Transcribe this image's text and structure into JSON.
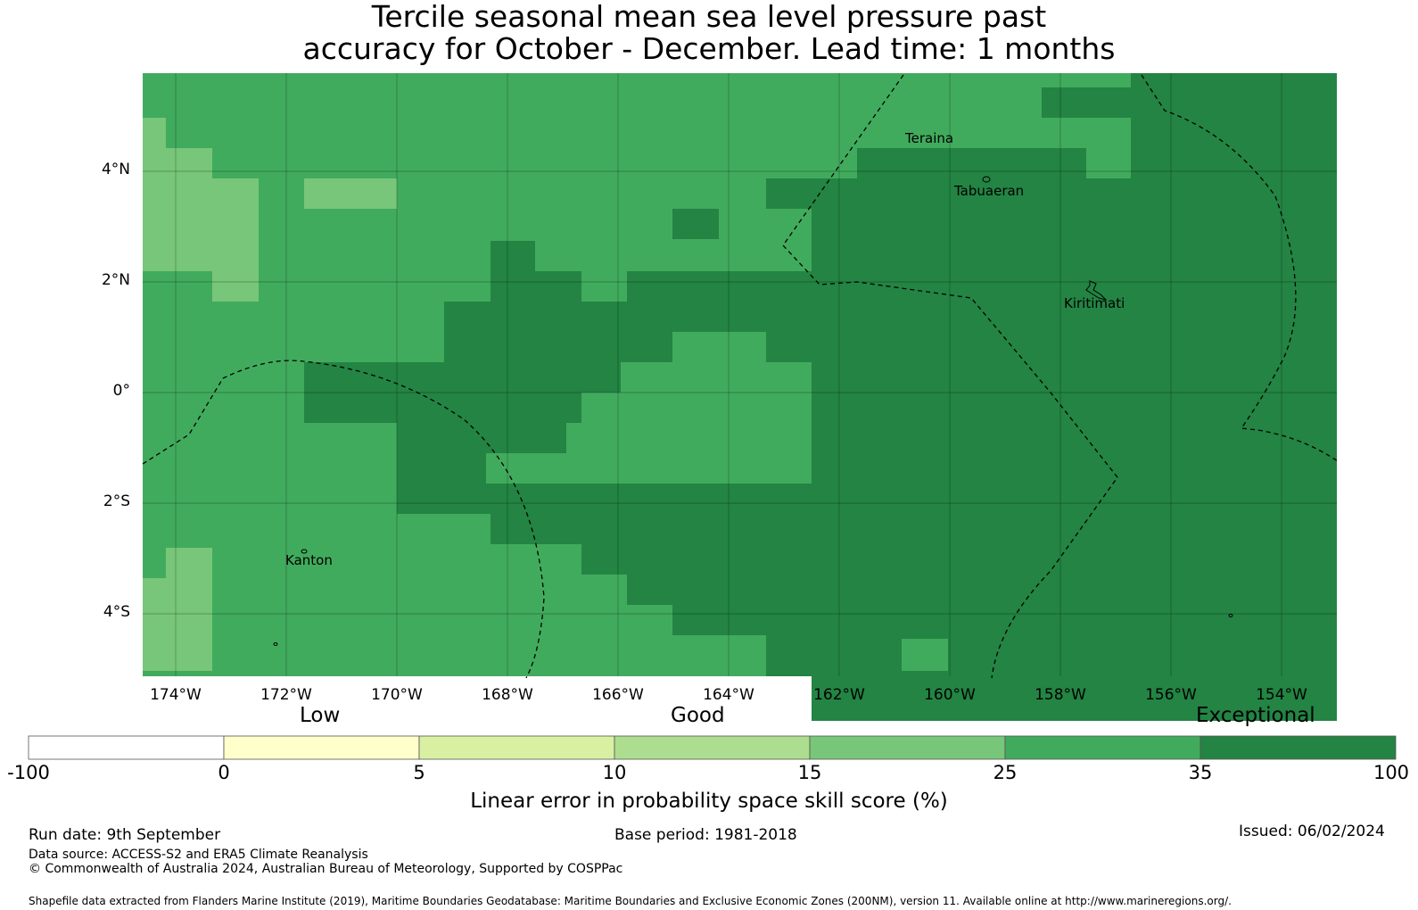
{
  "title_line1": "Tercile seasonal mean sea level pressure past",
  "title_line2": "accuracy for October - December. Lead time: 1 months",
  "map": {
    "lat_labels": [
      "4°N",
      "2°N",
      "0°",
      "2°S",
      "4°S"
    ],
    "lon_labels": [
      "174°W",
      "172°W",
      "170°W",
      "168°W",
      "166°W",
      "164°W",
      "162°W",
      "160°W",
      "158°W",
      "156°W",
      "154°W"
    ],
    "places": [
      "Teraina",
      "Tabuaeran",
      "Kiritimati",
      "Kanton"
    ],
    "colors": {
      "light": "#78c679",
      "mid": "#41ab5d",
      "dark": "#238443"
    }
  },
  "colorbar": {
    "category_labels": [
      "Low",
      "Good",
      "Exceptional"
    ],
    "tick_labels": [
      "-100",
      "0",
      "5",
      "10",
      "15",
      "25",
      "35",
      "100"
    ],
    "colors": [
      "#ffffff",
      "#ffffcc",
      "#d9f0a3",
      "#addd8e",
      "#78c679",
      "#41ab5d",
      "#238443"
    ],
    "title": "Linear error in probability space skill score (%)"
  },
  "footer": {
    "run_date": "Run date: 9th September",
    "base_period": "Base period: 1981-2018",
    "issued": "Issued: 06/02/2024",
    "data_source": "Data source: ACCESS-S2 and ERA5 Climate Reanalysis",
    "copyright": "© Commonwealth of Australia 2024, Australian Bureau of Meteorology, Supported by COSPPac",
    "shapefile": "Shapefile data extracted from Flanders Marine Institute (2019), Maritime Boundaries Geodatabase: Maritime Boundaries and Exclusive Economic Zones (200NM), version 11. Available online at http://www.marineregions.org/."
  }
}
